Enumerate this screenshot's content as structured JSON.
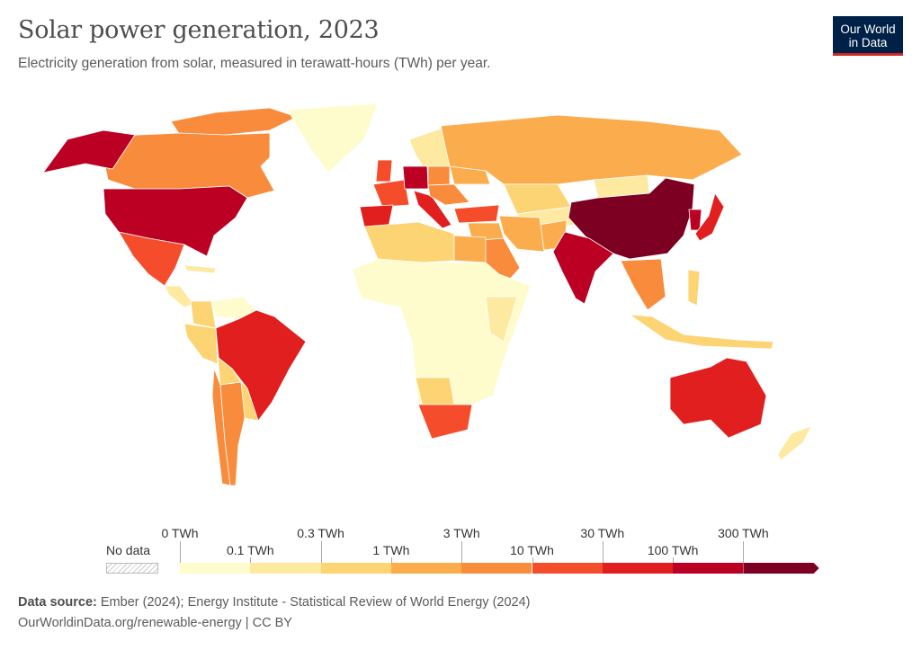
{
  "header": {
    "title": "Solar power generation, 2023",
    "subtitle": "Electricity generation from solar, measured in terawatt-hours (TWh) per year.",
    "logo_line1": "Our World",
    "logo_line2": "in Data"
  },
  "legend": {
    "no_data_label": "No data",
    "top_labels": [
      "0 TWh",
      "0.3 TWh",
      "3 TWh",
      "30 TWh",
      "300 TWh"
    ],
    "bottom_labels": [
      "0.1 TWh",
      "1 TWh",
      "10 TWh",
      "100 TWh"
    ],
    "bin_colors": [
      "#fefccd",
      "#fde9a0",
      "#fdd474",
      "#fbad4e",
      "#f98b3d",
      "#f54d2b",
      "#e01f1e",
      "#bb0024",
      "#7d0022"
    ],
    "no_data_color": "#cccccc"
  },
  "map_bins": {
    "canada": 4,
    "canada_islands": 4,
    "greenland": 0,
    "alaska_usa": 7,
    "usa": 7,
    "mexico": 5,
    "central_america": 1,
    "caribbean": 1,
    "colombia": 2,
    "venezuela": 0,
    "peru": 2,
    "bolivia": 2,
    "brazil": 6,
    "chile": 4,
    "argentina": 4,
    "paraguay_uruguay": 2,
    "scandinavia": 1,
    "uk": 5,
    "spain": 6,
    "france": 5,
    "germany": 7,
    "italy": 6,
    "poland": 4,
    "eastern_europe": 4,
    "ukraine": 3,
    "turkey": 5,
    "russia": 3,
    "kazakhstan": 2,
    "central_asia": 1,
    "mongolia": 1,
    "china": 8,
    "korea": 7,
    "japan": 6,
    "india": 7,
    "pakistan": 3,
    "iran": 3,
    "saudi_arabia": 4,
    "middle_east": 3,
    "egypt": 3,
    "north_africa": 2,
    "africa": 0,
    "east_africa": 1,
    "south_africa": 5,
    "namibia_botswana": 2,
    "southeast_asia": 4,
    "indonesia": 2,
    "philippines": 2,
    "australia": 6,
    "new_zealand": 1
  },
  "footer": {
    "source_label": "Data source:",
    "source_text": "Ember (2024); Energy Institute - Statistical Review of World Energy (2024)",
    "url_text": "OurWorldinData.org/renewable-energy | CC BY"
  }
}
